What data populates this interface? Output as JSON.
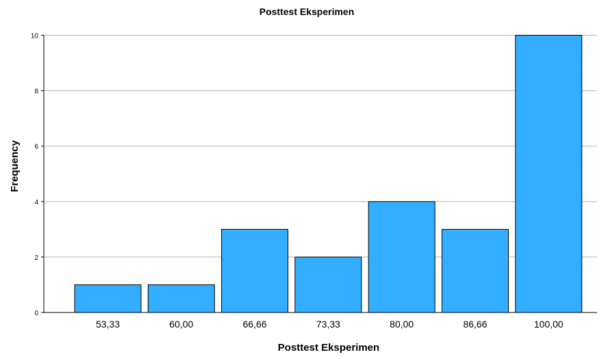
{
  "chart_data": {
    "type": "bar",
    "title": "Posttest Eksperimen",
    "xlabel": "Posttest Eksperimen",
    "ylabel": "Frequency",
    "categories": [
      "53,33",
      "60,00",
      "66,66",
      "73,33",
      "80,00",
      "86,66",
      "100,00"
    ],
    "values": [
      1,
      1,
      3,
      2,
      4,
      3,
      10
    ],
    "ylim": [
      0,
      11
    ],
    "yticks": [
      0,
      2,
      4,
      6,
      8,
      10
    ],
    "grid": true,
    "colors": {
      "bar": "#33adff",
      "grid": "#b5b5b5"
    }
  }
}
